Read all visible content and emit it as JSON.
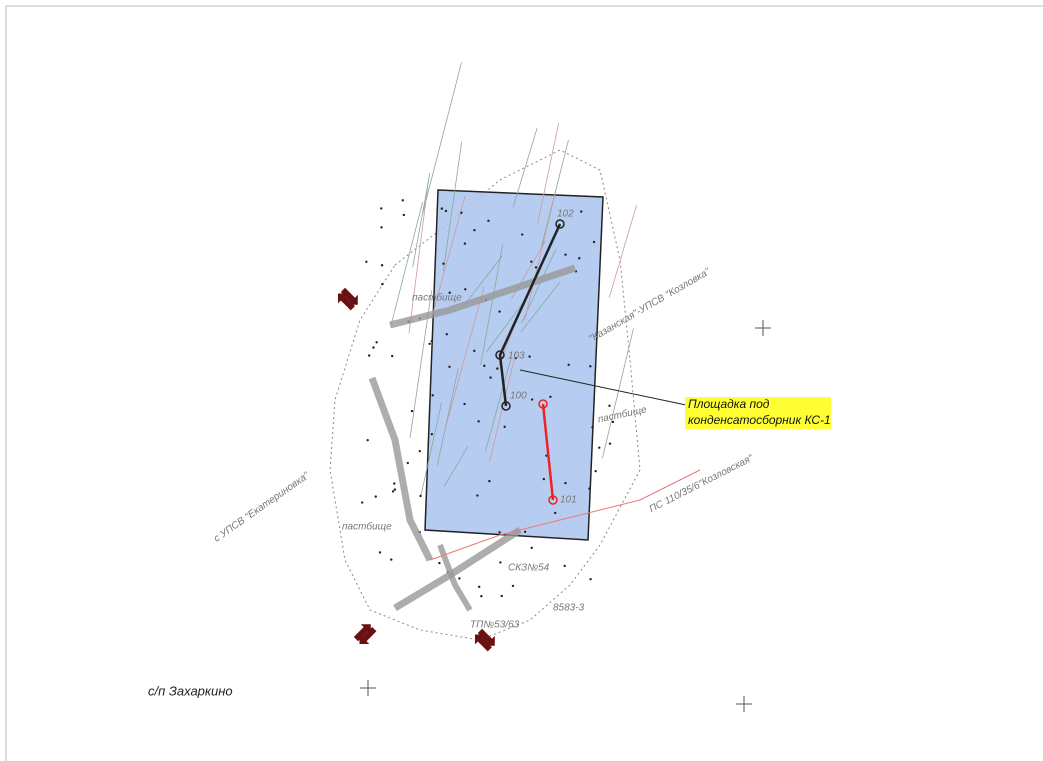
{
  "callout": {
    "lines": [
      "Площадка под",
      "конденсатосборник КС-1"
    ]
  },
  "settlement": "с/п Захаркино",
  "pasture_labels": [
    "пастбище",
    "пастбище",
    "пастбище"
  ],
  "point_labels": [
    "102",
    "103",
    "100",
    "101"
  ],
  "road_labels": [
    "с УПСВ \"Екатериновка\"",
    "ПС 110/35/6\"Козловская\"",
    "\"Казанская\"-УПСВ \"Козловка\""
  ],
  "object_labels": [
    "8583-3",
    "ТП№53/63",
    "СКЗ№54"
  ]
}
